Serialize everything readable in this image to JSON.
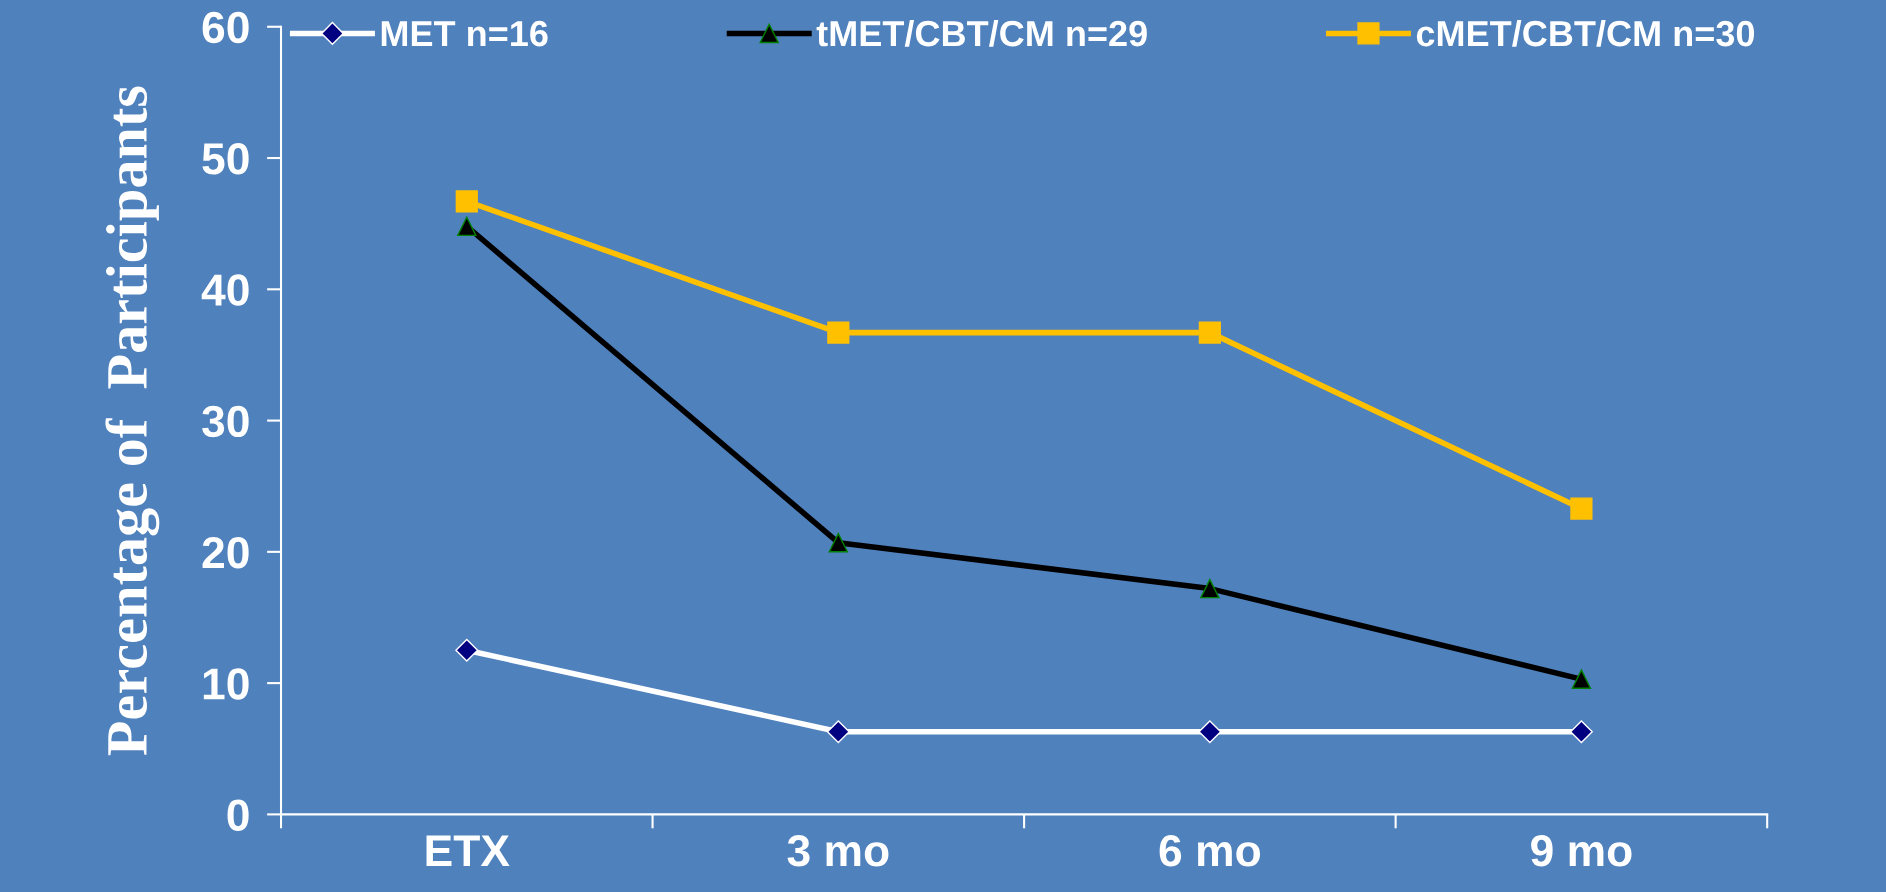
{
  "chart_data": {
    "type": "line",
    "ylabel": "Percentage of  Participants",
    "categories": [
      "ETX",
      "3 mo",
      "6 mo",
      "9 mo"
    ],
    "series": [
      {
        "name": "MET n=16",
        "color": "#ffffff",
        "marker": "diamond",
        "values": [
          12.5,
          6.3,
          6.3,
          6.3
        ]
      },
      {
        "name": "tMET/CBT/CM n=29",
        "color": "#000000",
        "marker": "triangle",
        "values": [
          44.8,
          20.7,
          17.2,
          10.3
        ]
      },
      {
        "name": "cMET/CBT/CM n=30",
        "color": "#ffc000",
        "marker": "square",
        "values": [
          46.7,
          36.7,
          36.7,
          23.3
        ]
      }
    ],
    "ylim": [
      0,
      60
    ],
    "yticks": [
      0,
      10,
      20,
      30,
      40,
      50,
      60
    ],
    "grid": false,
    "legend": "top",
    "line_style": "solid"
  }
}
